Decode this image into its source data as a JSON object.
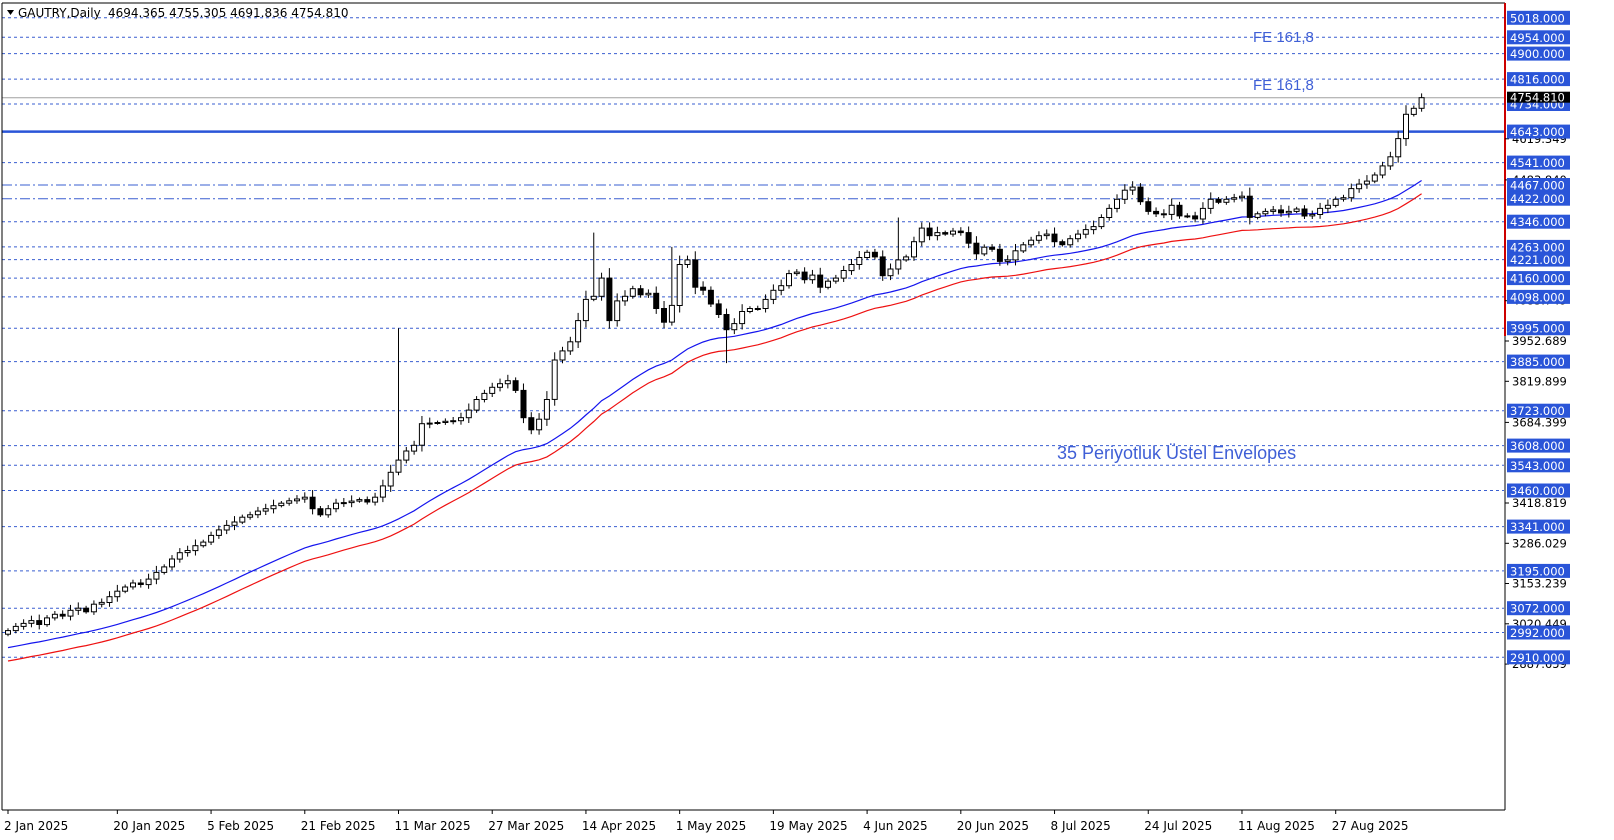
{
  "header": {
    "symbol": "GAUTRY,Daily",
    "ohlc": "4694.365 4755.305 4691.836 4754.810"
  },
  "colors": {
    "level_line": "#3a5fd0",
    "main_level": "#2a55d8",
    "price_box": "#2a55d8",
    "upper_envelope": "#1515ee",
    "lower_envelope": "#ee1111",
    "candle": "#000000",
    "scale_border": "#cc0000",
    "text_annotation": "#3f5fd6",
    "current_price_box": "#000000"
  },
  "annotations": {
    "fe_upper": "FE 161,8",
    "fe_lower": "FE 161,8",
    "indicator_label": "35 Periyotluk Üstel Envelopes"
  },
  "chart_data": {
    "type": "candlestick",
    "title": "GAUTRY,Daily",
    "ylim": [
      2860,
      5030
    ],
    "grid": false,
    "current_price": "4754.810",
    "main_level": "4643.000",
    "horizontal_levels": [
      {
        "label": "5018.000",
        "value": 5018,
        "style": "dashed"
      },
      {
        "label": "4954.000",
        "value": 4954,
        "style": "dashed"
      },
      {
        "label": "4900.000",
        "value": 4900,
        "style": "dashed"
      },
      {
        "label": "4816.000",
        "value": 4816,
        "style": "dashed"
      },
      {
        "label": "4734.000",
        "value": 4734,
        "style": "dashed"
      },
      {
        "label": "4643.000",
        "value": 4643,
        "style": "solid"
      },
      {
        "label": "4541.000",
        "value": 4541,
        "style": "dashed"
      },
      {
        "label": "4467.000",
        "value": 4467,
        "style": "dashdot"
      },
      {
        "label": "4422.000",
        "value": 4422,
        "style": "dashdot"
      },
      {
        "label": "4346.000",
        "value": 4346,
        "style": "dashed"
      },
      {
        "label": "4263.000",
        "value": 4263,
        "style": "dashed"
      },
      {
        "label": "4221.000",
        "value": 4221,
        "style": "dashed"
      },
      {
        "label": "4160.000",
        "value": 4160,
        "style": "dashed"
      },
      {
        "label": "4098.000",
        "value": 4098,
        "style": "dashed"
      },
      {
        "label": "3995.000",
        "value": 3995,
        "style": "dashed"
      },
      {
        "label": "3885.000",
        "value": 3885,
        "style": "dashed"
      },
      {
        "label": "3723.000",
        "value": 3723,
        "style": "dashed"
      },
      {
        "label": "3608.000",
        "value": 3608,
        "style": "dashed"
      },
      {
        "label": "3543.000",
        "value": 3543,
        "style": "dashed"
      },
      {
        "label": "3460.000",
        "value": 3460,
        "style": "dashed"
      },
      {
        "label": "3341.000",
        "value": 3341,
        "style": "dashed"
      },
      {
        "label": "3195.000",
        "value": 3195,
        "style": "dashed"
      },
      {
        "label": "3072.000",
        "value": 3072,
        "style": "dashed"
      },
      {
        "label": "2992.000",
        "value": 2992,
        "style": "dashed"
      },
      {
        "label": "2910.000",
        "value": 2910,
        "style": "dashed"
      }
    ],
    "y_ticks": [
      {
        "label": "4619.349",
        "value": 4619.349
      },
      {
        "label": "4483.840",
        "value": 4483.84
      },
      {
        "label": "4085.749",
        "value": 4085.749
      },
      {
        "label": "3952.689",
        "value": 3952.689
      },
      {
        "label": "3819.899",
        "value": 3819.899
      },
      {
        "label": "3684.399",
        "value": 3684.399
      },
      {
        "label": "3418.819",
        "value": 3418.819
      },
      {
        "label": "3286.029",
        "value": 3286.029
      },
      {
        "label": "3153.239",
        "value": 3153.239
      },
      {
        "label": "3020.449",
        "value": 3020.449
      },
      {
        "label": "2887.659",
        "value": 2887.659
      }
    ],
    "x_ticks": [
      {
        "label": "2 Jan 2025",
        "bar": 0
      },
      {
        "label": "20 Jan 2025",
        "bar": 14
      },
      {
        "label": "5 Feb 2025",
        "bar": 26
      },
      {
        "label": "21 Feb 2025",
        "bar": 38
      },
      {
        "label": "11 Mar 2025",
        "bar": 50
      },
      {
        "label": "27 Mar 2025",
        "bar": 62
      },
      {
        "label": "14 Apr 2025",
        "bar": 74
      },
      {
        "label": "1 May 2025",
        "bar": 86
      },
      {
        "label": "19 May 2025",
        "bar": 98
      },
      {
        "label": "4 Jun 2025",
        "bar": 110
      },
      {
        "label": "20 Jun 2025",
        "bar": 122
      },
      {
        "label": "8 Jul 2025",
        "bar": 134
      },
      {
        "label": "24 Jul 2025",
        "bar": 146
      },
      {
        "label": "11 Aug 2025",
        "bar": 158
      },
      {
        "label": "27 Aug 2025",
        "bar": 170
      }
    ],
    "closes": [
      2998,
      3012,
      3022,
      3031,
      3018,
      3040,
      3052,
      3046,
      3065,
      3072,
      3060,
      3085,
      3091,
      3110,
      3128,
      3142,
      3155,
      3150,
      3168,
      3190,
      3208,
      3234,
      3255,
      3262,
      3278,
      3290,
      3312,
      3330,
      3345,
      3356,
      3372,
      3380,
      3392,
      3400,
      3410,
      3418,
      3426,
      3432,
      3438,
      3400,
      3380,
      3400,
      3418,
      3420,
      3425,
      3430,
      3422,
      3438,
      3475,
      3520,
      3560,
      3590,
      3609,
      3680,
      3682,
      3684,
      3688,
      3690,
      3700,
      3725,
      3760,
      3780,
      3800,
      3812,
      3822,
      3790,
      3700,
      3660,
      3695,
      3760,
      3890,
      3920,
      3950,
      4020,
      4090,
      4100,
      4160,
      4020,
      4085,
      4100,
      4125,
      4105,
      4110,
      4060,
      4015,
      4070,
      4205,
      4220,
      4130,
      4120,
      4075,
      4040,
      3990,
      4010,
      4050,
      4060,
      4060,
      4090,
      4120,
      4135,
      4175,
      4180,
      4155,
      4170,
      4130,
      4150,
      4160,
      4185,
      4205,
      4228,
      4245,
      4230,
      4168,
      4190,
      4220,
      4230,
      4280,
      4325,
      4300,
      4310,
      4305,
      4315,
      4310,
      4275,
      4240,
      4262,
      4255,
      4215,
      4220,
      4250,
      4270,
      4285,
      4300,
      4305,
      4280,
      4270,
      4290,
      4305,
      4320,
      4330,
      4360,
      4390,
      4420,
      4450,
      4460,
      4412,
      4380,
      4372,
      4370,
      4400,
      4365,
      4365,
      4355,
      4390,
      4420,
      4410,
      4420,
      4425,
      4430,
      4360,
      4372,
      4380,
      4385,
      4375,
      4380,
      4388,
      4365,
      4370,
      4390,
      4400,
      4420,
      4425,
      4455,
      4470,
      4480,
      4500,
      4530,
      4560,
      4620,
      4700,
      4720,
      4754.81
    ]
  }
}
